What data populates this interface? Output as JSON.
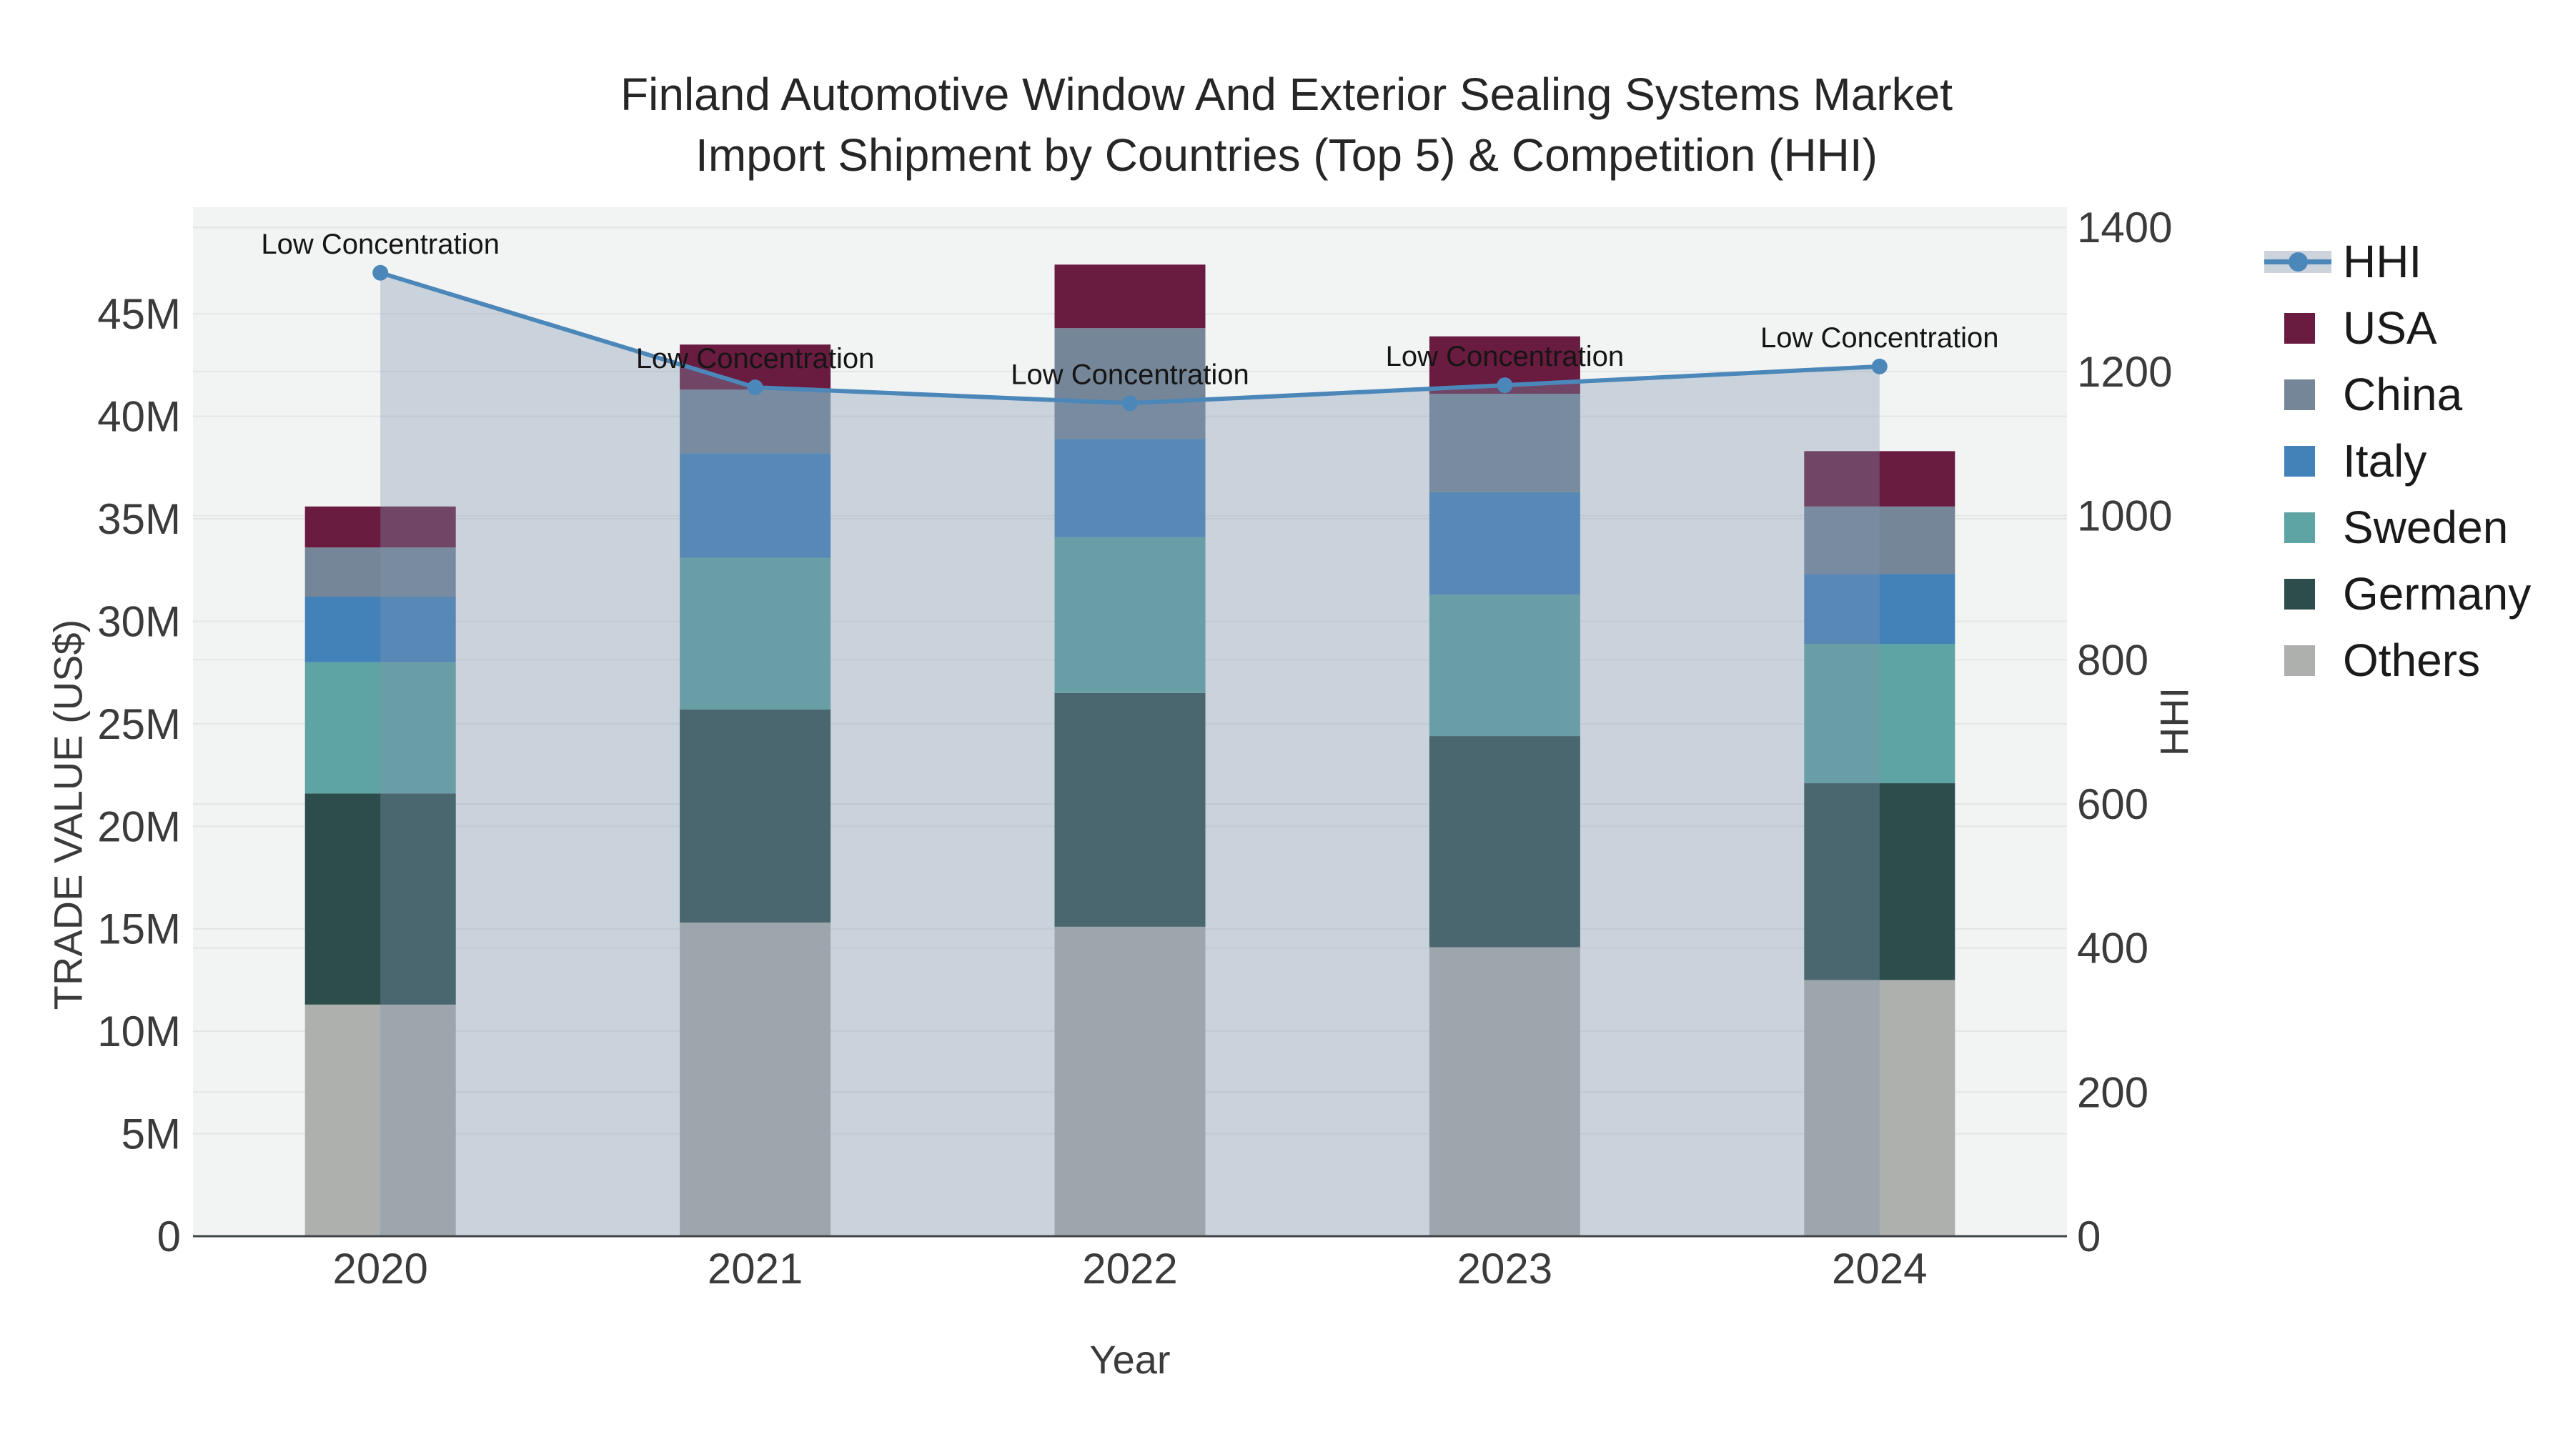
{
  "title": {
    "line1": "Finland Automotive Window And Exterior Sealing Systems Market",
    "line2": "Import Shipment by Countries (Top 5) & Competition (HHI)"
  },
  "axes": {
    "x": {
      "title": "Year",
      "tick_labels": [
        "2020",
        "2021",
        "2022",
        "2023",
        "2024"
      ]
    },
    "y_left": {
      "title": "TRADE VALUE (US$)",
      "tick_labels": [
        "0",
        "5M",
        "10M",
        "15M",
        "20M",
        "25M",
        "30M",
        "35M",
        "40M",
        "45M"
      ],
      "tick_values_millions": [
        0,
        5,
        10,
        15,
        20,
        25,
        30,
        35,
        40,
        45
      ]
    },
    "y_right": {
      "title": "HHI",
      "tick_labels": [
        "0",
        "200",
        "400",
        "600",
        "800",
        "1000",
        "1200",
        "1400"
      ],
      "tick_values": [
        0,
        200,
        400,
        600,
        800,
        1000,
        1200,
        1400
      ]
    }
  },
  "legend": {
    "position": "right",
    "items": [
      {
        "label": "HHI",
        "type": "line",
        "color": "#4C87BA"
      },
      {
        "label": "USA",
        "type": "swatch",
        "color": "#691B40"
      },
      {
        "label": "China",
        "type": "swatch",
        "color": "#758699"
      },
      {
        "label": "Italy",
        "type": "swatch",
        "color": "#4382B8"
      },
      {
        "label": "Sweden",
        "type": "swatch",
        "color": "#5EA4A4"
      },
      {
        "label": "Germany",
        "type": "swatch",
        "color": "#2D4D4C"
      },
      {
        "label": "Others",
        "type": "swatch",
        "color": "#ADB0AD"
      }
    ]
  },
  "chart_data": {
    "type": "bar+line",
    "title": "Finland Automotive Window And Exterior Sealing Systems Market — Import Shipment by Countries (Top 5) & Competition (HHI)",
    "categories": [
      "2020",
      "2021",
      "2022",
      "2023",
      "2024"
    ],
    "unit": "US$ millions",
    "stack_order_bottom_to_top": [
      "Others",
      "Germany",
      "Sweden",
      "Italy",
      "China",
      "USA"
    ],
    "series": [
      {
        "name": "USA",
        "type": "bar",
        "color": "#691B40",
        "values": [
          2.0,
          2.2,
          3.1,
          2.8,
          2.7
        ]
      },
      {
        "name": "China",
        "type": "bar",
        "color": "#758699",
        "values": [
          2.4,
          3.1,
          5.4,
          4.8,
          3.3
        ]
      },
      {
        "name": "Italy",
        "type": "bar",
        "color": "#4382B8",
        "values": [
          3.2,
          5.1,
          4.8,
          5.0,
          3.4
        ]
      },
      {
        "name": "Sweden",
        "type": "bar",
        "color": "#5EA4A4",
        "values": [
          6.4,
          7.4,
          7.6,
          6.9,
          6.8
        ]
      },
      {
        "name": "Germany",
        "type": "bar",
        "color": "#2D4D4C",
        "values": [
          10.3,
          10.4,
          11.4,
          10.3,
          9.6
        ]
      },
      {
        "name": "Others",
        "type": "bar",
        "color": "#ADB0AD",
        "values": [
          11.3,
          15.3,
          15.1,
          14.1,
          12.5
        ]
      },
      {
        "name": "HHI",
        "type": "line",
        "axis": "right",
        "color": "#4C87BA",
        "fill": "tozeroy",
        "fill_color": "rgba(130,150,175,0.35)",
        "values": [
          1337,
          1178,
          1156,
          1181,
          1207
        ]
      }
    ],
    "bar_totals_millions": [
      35.6,
      43.5,
      47.4,
      43.9,
      38.3
    ],
    "annotations": [
      {
        "x": "2020",
        "text": "Low Concentration"
      },
      {
        "x": "2021",
        "text": "Low Concentration"
      },
      {
        "x": "2022",
        "text": "Low Concentration"
      },
      {
        "x": "2023",
        "text": "Low Concentration"
      },
      {
        "x": "2024",
        "text": "Low Concentration"
      }
    ],
    "xlabel": "Year",
    "ylabel": "TRADE VALUE (US$)",
    "ylabel_right": "HHI",
    "ylim_left_millions": [
      0,
      50.2
    ],
    "ylim_right": [
      0,
      1428
    ],
    "grid": true,
    "legend_position": "right"
  },
  "colors": {
    "plot_bg": "#F2F3F3",
    "grid": "#E3E5E7",
    "baseline": "#3F4447",
    "fill_area": "rgba(130,150,175,0.35)",
    "hhi_line": "#4C87BA",
    "title_text": "#262626",
    "tick_text": "#3B3B3B",
    "annotation_text": "#151515"
  }
}
